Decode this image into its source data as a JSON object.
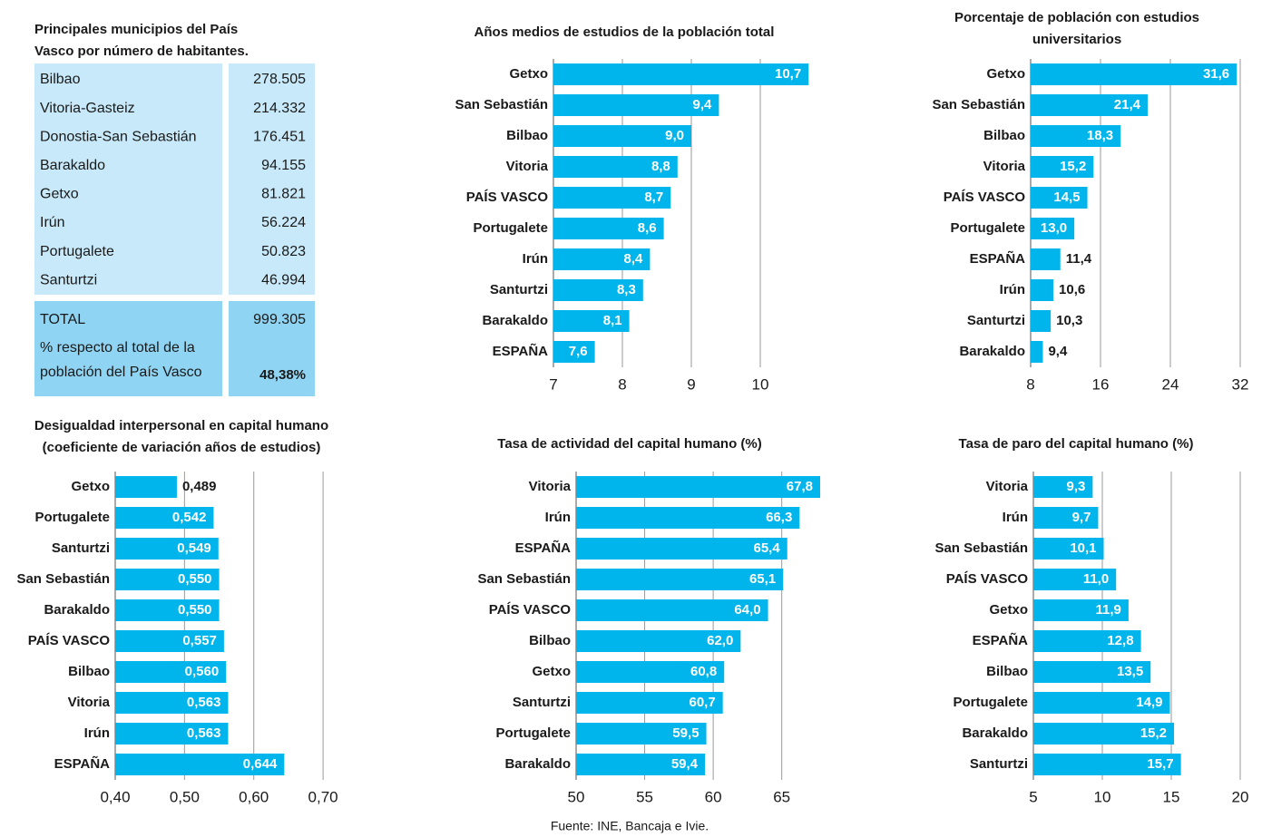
{
  "table": {
    "title": [
      "Principales municipios del País",
      "Vasco por número de habitantes."
    ],
    "rows": [
      [
        "Bilbao",
        "278.505"
      ],
      [
        "Vitoria-Gasteiz",
        "214.332"
      ],
      [
        "Donostia-San Sebastián",
        "176.451"
      ],
      [
        "Barakaldo",
        "94.155"
      ],
      [
        "Getxo",
        "81.821"
      ],
      [
        "Irún",
        "56.224"
      ],
      [
        "Portugalete",
        "50.823"
      ],
      [
        "Santurtzi",
        "46.994"
      ]
    ],
    "total": [
      "TOTAL",
      "999.305"
    ],
    "share": {
      "label": [
        "% respecto al total de la",
        "población del País Vasco"
      ],
      "value": "48,38%"
    }
  },
  "chart_data": [
    {
      "type": "bar",
      "orientation": "horizontal",
      "title": [
        "Años medios de estudios de la población total"
      ],
      "color": "#00b5ec",
      "categories": [
        "Getxo",
        "San Sebastián",
        "Bilbao",
        "Vitoria",
        "PAÍS VASCO",
        "Portugalete",
        "Irún",
        "Santurtzi",
        "Barakaldo",
        "ESPAÑA"
      ],
      "values": [
        10.7,
        9.4,
        9.0,
        8.8,
        8.7,
        8.6,
        8.4,
        8.3,
        8.1,
        7.6
      ],
      "value_labels": [
        "10,7",
        "9,4",
        "9,0",
        "8,8",
        "8,7",
        "8,6",
        "8,4",
        "8,3",
        "8,1",
        "7,6"
      ],
      "xlim": [
        7,
        11
      ],
      "xticks": [
        7,
        8,
        9,
        10
      ],
      "grid": true
    },
    {
      "type": "bar",
      "orientation": "horizontal",
      "title": [
        "Porcentaje de población con estudios",
        "universitarios"
      ],
      "color": "#00b5ec",
      "categories": [
        "Getxo",
        "San Sebastián",
        "Bilbao",
        "Vitoria",
        "PAÍS VASCO",
        "Portugalete",
        "ESPAÑA",
        "Irún",
        "Santurtzi",
        "Barakaldo"
      ],
      "values": [
        31.6,
        21.4,
        18.3,
        15.2,
        14.5,
        13.0,
        11.4,
        10.6,
        10.3,
        9.4
      ],
      "value_labels": [
        "31,6",
        "21,4",
        "18,3",
        "15,2",
        "14,5",
        "13,0",
        "11,4",
        "10,6",
        "10,3",
        "9,4"
      ],
      "xlim": [
        8,
        32
      ],
      "xticks": [
        8,
        16,
        24,
        32
      ],
      "grid": true
    },
    {
      "type": "bar",
      "orientation": "horizontal",
      "title": [
        "Desigualdad interpersonal en capital humano",
        "(coeficiente de variación años de estudios)"
      ],
      "color": "#00b5ec",
      "categories": [
        "Getxo",
        "Portugalete",
        "Santurtzi",
        "San Sebastián",
        "Barakaldo",
        "PAÍS VASCO",
        "Bilbao",
        "Vitoria",
        "Irún",
        "ESPAÑA"
      ],
      "values": [
        0.489,
        0.542,
        0.549,
        0.55,
        0.55,
        0.557,
        0.56,
        0.563,
        0.563,
        0.644
      ],
      "value_labels": [
        "0,489",
        "0,542",
        "0,549",
        "0,550",
        "0,550",
        "0,557",
        "0,560",
        "0,563",
        "0,563",
        "0,644"
      ],
      "xlim": [
        0.4,
        0.73
      ],
      "xticks": [
        {
          "value": 0.4,
          "label": "0,40"
        },
        {
          "value": 0.5,
          "label": "0,50"
        },
        {
          "value": 0.6,
          "label": "0,60"
        },
        {
          "value": 0.7,
          "label": "0,70"
        }
      ],
      "grid": true
    },
    {
      "type": "bar",
      "orientation": "horizontal",
      "title": [
        "Tasa de actividad del capital humano (%)"
      ],
      "color": "#00b5ec",
      "categories": [
        "Vitoria",
        "Irún",
        "ESPAÑA",
        "San Sebastián",
        "PAÍS VASCO",
        "Bilbao",
        "Getxo",
        "Santurtzi",
        "Portugalete",
        "Barakaldo"
      ],
      "values": [
        67.8,
        66.3,
        65.4,
        65.1,
        64.0,
        62.0,
        60.8,
        60.7,
        59.5,
        59.4
      ],
      "value_labels": [
        "67,8",
        "66,3",
        "65,4",
        "65,1",
        "64,0",
        "62,0",
        "60,8",
        "60,7",
        "59,5",
        "59,4"
      ],
      "xlim": [
        50,
        68
      ],
      "xticks": [
        50,
        55,
        60,
        65
      ],
      "grid": true
    },
    {
      "type": "bar",
      "orientation": "horizontal",
      "title": [
        "Tasa de paro del capital humano (%)"
      ],
      "color": "#00b5ec",
      "categories": [
        "Vitoria",
        "Irún",
        "San Sebastián",
        "PAÍS VASCO",
        "Getxo",
        "ESPAÑA",
        "Bilbao",
        "Portugalete",
        "Barakaldo",
        "Santurtzi"
      ],
      "values": [
        9.3,
        9.7,
        10.1,
        11.0,
        11.9,
        12.8,
        13.5,
        14.9,
        15.2,
        15.7
      ],
      "value_labels": [
        "9,3",
        "9,7",
        "10,1",
        "11,0",
        "11,9",
        "12,8",
        "13,5",
        "14,9",
        "15,2",
        "15,7"
      ],
      "xlim": [
        5,
        20
      ],
      "xticks": [
        5,
        10,
        15,
        20
      ],
      "grid": true
    }
  ],
  "source": "Fuente: INE, Bancaja e Ivie."
}
